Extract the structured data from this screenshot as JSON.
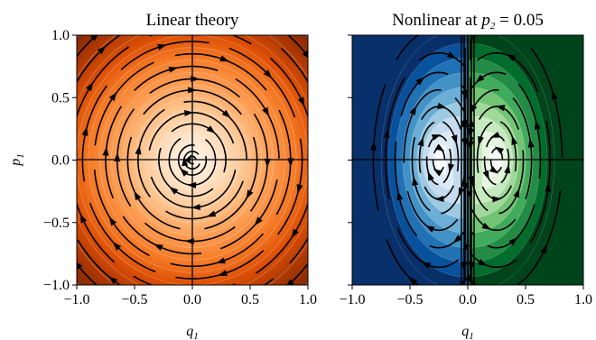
{
  "chart_data": [
    {
      "type": "heatmap",
      "plot_kind": "streamplot-over-filled-contour",
      "title": "Linear theory",
      "xlabel": "q",
      "xlabel_sub": "1",
      "ylabel": "p",
      "ylabel_sub": "1",
      "xlim": [
        -1.0,
        1.0
      ],
      "ylim": [
        -1.0,
        1.0
      ],
      "xticks": [
        "−1.0",
        "−0.5",
        "0.0",
        "0.5",
        "1.0"
      ],
      "yticks": [
        "−1.0",
        "−0.5",
        "0.0",
        "0.5",
        "1.0"
      ],
      "colormap": "Oranges",
      "color_low": "#fff5eb",
      "color_high": "#7f2704",
      "streamline_color": "#000000",
      "field": "radial potential, circular clockwise streamlines centered at (0, 0)",
      "streamline_radii": [
        0.03,
        0.07,
        0.12,
        0.2,
        0.29,
        0.38,
        0.47,
        0.56,
        0.65,
        0.75,
        0.85,
        0.95,
        1.06,
        1.18,
        1.3
      ]
    },
    {
      "type": "heatmap",
      "plot_kind": "streamplot-over-filled-contour",
      "title": "Nonlinear at ",
      "title_var": "p",
      "title_sub": "2",
      "title_eq": " = 0.05",
      "xlabel": "q",
      "xlabel_sub": "1",
      "xlim": [
        -1.0,
        1.0
      ],
      "ylim": [
        -1.0,
        1.0
      ],
      "xticks": [
        "−1.0",
        "−0.5",
        "0.0",
        "0.5",
        "1.0"
      ],
      "colormap_left": "Blues",
      "colormap_right": "Greens",
      "color_left_low": "#f7fbff",
      "color_left_high": "#08306b",
      "color_right_low": "#f7fcf5",
      "color_right_high": "#00441b",
      "streamline_color": "#000000",
      "vortex_centers": [
        [
          -0.25,
          0.0
        ],
        [
          0.25,
          0.0
        ]
      ],
      "separatrix_q1": 0.0
    }
  ]
}
